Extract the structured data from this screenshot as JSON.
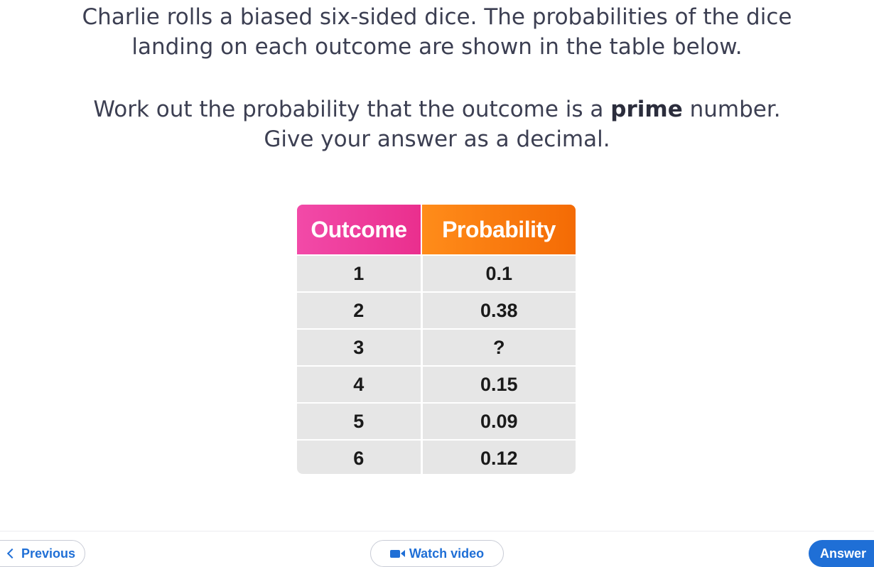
{
  "question": {
    "line1": "Charlie rolls a biased six-sided dice. The probabilities of the dice",
    "line2": "landing on each outcome are shown in the table below.",
    "line3_before": "Work out the probability that the outcome is a ",
    "line3_bold": "prime",
    "line3_after": " number.",
    "line4": "Give your answer as a decimal."
  },
  "table": {
    "headers": [
      "Outcome",
      "Probability"
    ],
    "header_colors": {
      "outcome": "#ea2f8e",
      "probability": "#f46b05"
    },
    "rows": [
      {
        "outcome": "1",
        "probability": "0.1"
      },
      {
        "outcome": "2",
        "probability": "0.38"
      },
      {
        "outcome": "3",
        "probability": "?"
      },
      {
        "outcome": "4",
        "probability": "0.15"
      },
      {
        "outcome": "5",
        "probability": "0.09"
      },
      {
        "outcome": "6",
        "probability": "0.12"
      }
    ]
  },
  "footer": {
    "previous_label": "Previous",
    "previous_icon": "chevron-left-icon",
    "watch_label": "Watch video",
    "watch_icon": "video-camera-icon",
    "answer_label": "Answer",
    "accent_color": "#1f6fd6"
  }
}
